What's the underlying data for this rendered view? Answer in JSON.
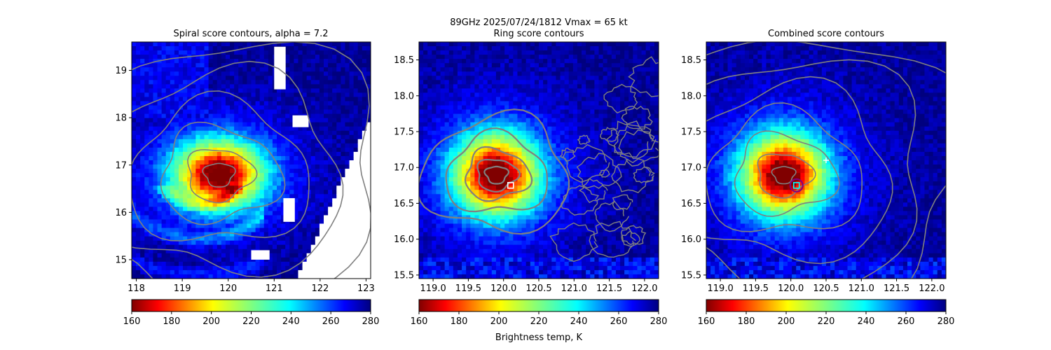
{
  "figure": {
    "suptitle_line1": "89GHz  2025/07/24/1812    Vmax = 65 kt",
    "colorbar_label": "Brightness temp, K"
  },
  "chart_data": [
    {
      "type": "heatmap",
      "title": "Spiral score contours, alpha =  7.2",
      "xlim": [
        117.9,
        123.1
      ],
      "ylim": [
        14.6,
        19.6
      ],
      "xticks": [
        118,
        119,
        120,
        121,
        122,
        123
      ],
      "yticks": [
        15,
        16,
        17,
        18,
        19
      ],
      "xtick_labels": [
        "118",
        "119",
        "120",
        "121",
        "122",
        "123"
      ],
      "ytick_labels": [
        "15",
        "16",
        "17",
        "18",
        "19"
      ],
      "colormap": "jet_r",
      "clim": [
        160,
        280
      ],
      "colorbar_ticks": [
        "160",
        "180",
        "200",
        "220",
        "240",
        "260",
        "280"
      ],
      "warm_core": {
        "x": 119.8,
        "y": 16.8
      },
      "contour_color": "#808080",
      "swath_edge": "diagonal gap from (121.5, 14.6) to (123.1, 18.0)",
      "markers": []
    },
    {
      "type": "heatmap",
      "title": "Ring score contours",
      "xlim": [
        118.8,
        122.2
      ],
      "ylim": [
        15.45,
        18.75
      ],
      "xticks": [
        119.0,
        119.5,
        120.0,
        120.5,
        121.0,
        121.5,
        122.0
      ],
      "yticks": [
        15.5,
        16.0,
        16.5,
        17.0,
        17.5,
        18.0,
        18.5
      ],
      "xtick_labels": [
        "119.0",
        "119.5",
        "120.0",
        "120.5",
        "121.0",
        "121.5",
        "122.0"
      ],
      "ytick_labels": [
        "15.5",
        "16.0",
        "16.5",
        "17.0",
        "17.5",
        "18.0",
        "18.5"
      ],
      "colormap": "jet_r",
      "clim": [
        160,
        280
      ],
      "colorbar_ticks": [
        "160",
        "180",
        "200",
        "220",
        "240",
        "260",
        "280"
      ],
      "warm_core": {
        "x": 119.9,
        "y": 16.9
      },
      "contour_color": "#808080",
      "markers": [
        {
          "kind": "square",
          "x": 120.1,
          "y": 16.75,
          "color": "#ffffff"
        }
      ]
    },
    {
      "type": "heatmap",
      "title": "Combined score contours",
      "xlim": [
        118.8,
        122.2
      ],
      "ylim": [
        15.45,
        18.75
      ],
      "xticks": [
        119.0,
        119.5,
        120.0,
        120.5,
        121.0,
        121.5,
        122.0
      ],
      "yticks": [
        15.5,
        16.0,
        16.5,
        17.0,
        17.5,
        18.0,
        18.5
      ],
      "xtick_labels": [
        "119.0",
        "119.5",
        "120.0",
        "120.5",
        "121.0",
        "121.5",
        "122.0"
      ],
      "ytick_labels": [
        "15.5",
        "16.0",
        "16.5",
        "17.0",
        "17.5",
        "18.0",
        "18.5"
      ],
      "colormap": "jet_r",
      "clim": [
        160,
        280
      ],
      "colorbar_ticks": [
        "160",
        "180",
        "200",
        "220",
        "240",
        "260",
        "280"
      ],
      "warm_core": {
        "x": 119.9,
        "y": 16.9
      },
      "contour_color": "#808080",
      "markers": [
        {
          "kind": "circle",
          "x": 120.08,
          "y": 16.75,
          "color": "#800080"
        },
        {
          "kind": "square",
          "x": 120.08,
          "y": 16.75,
          "color": "#00ffff"
        },
        {
          "kind": "plus",
          "x": 120.5,
          "y": 17.1,
          "color": "#ffffff"
        }
      ]
    }
  ]
}
